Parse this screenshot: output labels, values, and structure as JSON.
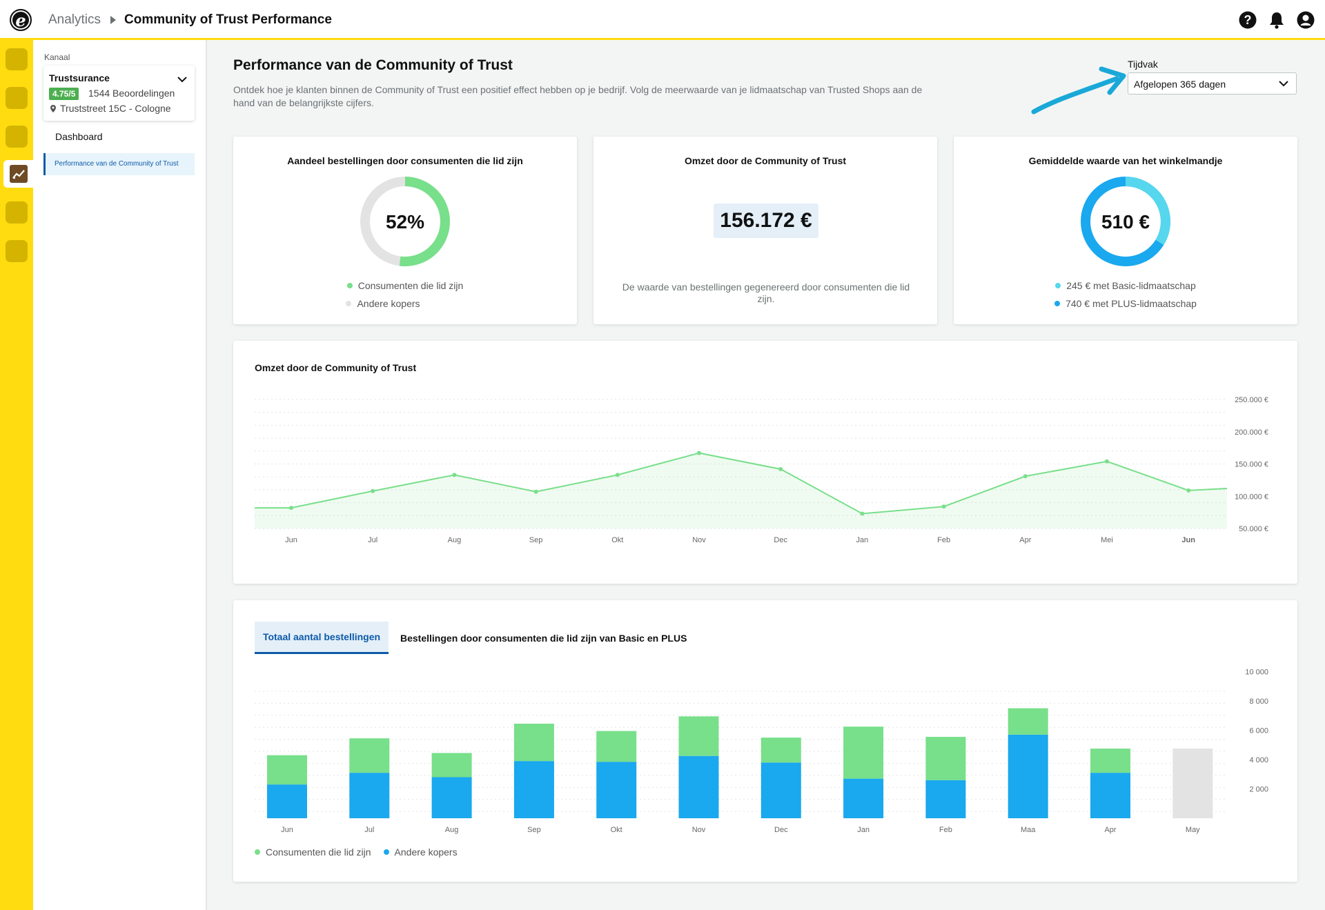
{
  "header": {
    "breadcrumb_root": "Analytics",
    "breadcrumb_current": "Community of Trust Performance",
    "icons": [
      "help-icon",
      "bell-icon",
      "user-icon"
    ]
  },
  "sidebar": {
    "kanaal_label": "Kanaal",
    "channel": {
      "name": "Trustsurance",
      "rating": "4.75/5",
      "reviews": "1544 Beoordelingen",
      "address": "Truststreet 15C - Cologne"
    },
    "nav": [
      {
        "label": "Dashboard"
      },
      {
        "label": "Performance van de Community of Trust"
      }
    ]
  },
  "main": {
    "title": "Performance van de Community of Trust",
    "description": "Ontdek hoe je klanten binnen de Community of Trust een positief effect hebben op je bedrijf. Volg de meerwaarde van je lidmaatschap van Trusted Shops aan de hand van de belangrijkste cijfers.",
    "tijdvak_label": "Tijdvak",
    "tijdvak_value": "Afgelopen 365 dagen"
  },
  "kpis": {
    "share": {
      "title": "Aandeel bestellingen door consumenten die lid zijn",
      "value": "52%",
      "fraction": 0.52,
      "legend": [
        "Consumenten die lid zijn",
        "Andere kopers"
      ]
    },
    "revenue": {
      "title": "Omzet door de Community of Trust",
      "value": "156.172 €",
      "description": "De waarde van bestellingen gegenereerd door consumenten die lid zijn."
    },
    "basket": {
      "title": "Gemiddelde waarde van het winkelmandje",
      "value": "510 €",
      "legend": [
        "245 € met Basic-lidmaatschap",
        "740 € met PLUS-lidmaatschap"
      ]
    }
  },
  "colors": {
    "green": "#78df8a",
    "blue": "#1aa8ee",
    "lightblue": "#56d7ee",
    "gray": "#e3e3e3",
    "yellow": "#ffdc0f"
  },
  "line_section": {
    "title": "Omzet door de Community of Trust"
  },
  "bar_section": {
    "tabs": [
      "Totaal aantal bestellingen",
      "Bestellingen door consumenten die lid zijn van Basic en PLUS"
    ],
    "legend": [
      "Consumenten die lid zijn",
      "Andere kopers"
    ]
  },
  "chart_data": [
    {
      "type": "area",
      "title": "Omzet door de Community of Trust",
      "categories": [
        "Jun",
        "Jul",
        "Aug",
        "Sep",
        "Okt",
        "Nov",
        "Dec",
        "Jan",
        "Feb",
        "Apr",
        "Mei",
        "Jun"
      ],
      "values": [
        82000,
        108000,
        133000,
        107000,
        133000,
        167000,
        142000,
        73000,
        84000,
        131000,
        154000,
        109000
      ],
      "y_ticks": [
        "250.000 €",
        "200.000 €",
        "150.000 €",
        "100.000 €",
        "50.000 €"
      ],
      "ylim": [
        50000,
        250000
      ],
      "grid": true
    },
    {
      "type": "bar",
      "stacked": true,
      "categories": [
        "Jun",
        "Jul",
        "Aug",
        "Sep",
        "Okt",
        "Nov",
        "Dec",
        "Jan",
        "Feb",
        "Maa",
        "Apr",
        "May"
      ],
      "series": [
        {
          "name": "Andere kopers",
          "values": [
            2300,
            3100,
            2800,
            3900,
            3850,
            4250,
            3800,
            2700,
            2600,
            5700,
            3100,
            0
          ]
        },
        {
          "name": "Consumenten die lid zijn",
          "values": [
            2000,
            2350,
            1650,
            2550,
            2100,
            2700,
            1700,
            3550,
            2950,
            1800,
            1650,
            0
          ]
        },
        {
          "name": "",
          "values": [
            0,
            0,
            0,
            0,
            0,
            0,
            0,
            0,
            0,
            0,
            0,
            4750
          ]
        }
      ],
      "y_ticks": [
        "10 000",
        "8 000",
        "6 000",
        "4 000",
        "2 000"
      ],
      "ylim": [
        0,
        10000
      ],
      "grid": true
    }
  ]
}
